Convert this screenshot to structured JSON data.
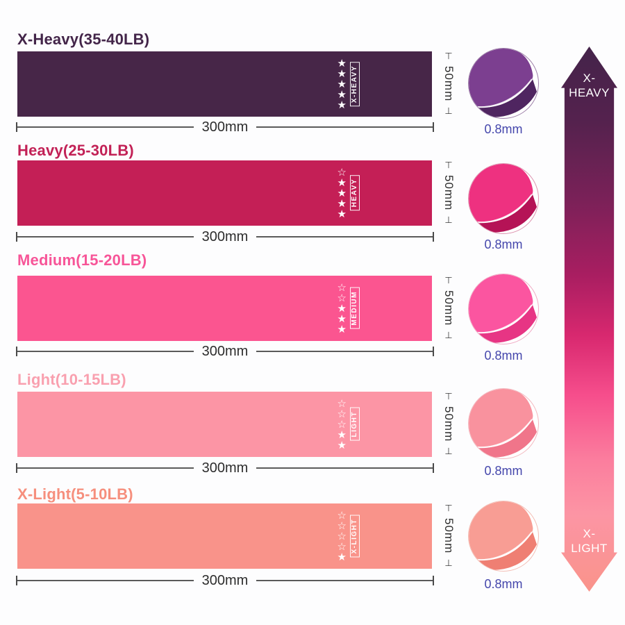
{
  "page": {
    "background": "#fdfdfe"
  },
  "colors": {
    "dimension_text": "#2d2d2d",
    "dimension_line": "#5a5a5a",
    "thickness_text": "#4547ac",
    "star_color": "#ffffff"
  },
  "bands": [
    {
      "title": "X-Heavy(35-40LB)",
      "title_color": "#432549",
      "color": "#472648",
      "label": "X-HEAVY",
      "stars": [
        1,
        1,
        1,
        1,
        1
      ],
      "width_label": "300mm",
      "height_label": "50mm",
      "thickness_label": "0.8mm",
      "circle": {
        "main": "#7c3f90",
        "dark": "#4f2560",
        "border": "#9d7fa8"
      }
    },
    {
      "title": "Heavy(25-30LB)",
      "title_color": "#c22156",
      "color": "#c41f56",
      "label": "HEAVY",
      "stars": [
        0,
        1,
        1,
        1,
        1
      ],
      "width_label": "300mm",
      "height_label": "50mm",
      "thickness_label": "0.8mm",
      "circle": {
        "main": "#ee3180",
        "dark": "#b51356",
        "border": "#dd93af"
      }
    },
    {
      "title": "Medium(15-20LB)",
      "title_color": "#f75598",
      "color": "#fb5590",
      "label": "MEDIUM",
      "stars": [
        0,
        0,
        1,
        1,
        1
      ],
      "width_label": "300mm",
      "height_label": "50mm",
      "thickness_label": "0.8mm",
      "circle": {
        "main": "#fb55a0",
        "dark": "#e73584",
        "border": "#f0a9c4"
      }
    },
    {
      "title": "Light(10-15LB)",
      "title_color": "#f9a0af",
      "color": "#fc95a5",
      "label": "LIGHT",
      "stars": [
        0,
        0,
        0,
        1,
        1
      ],
      "width_label": "300mm",
      "height_label": "50mm",
      "thickness_label": "0.8mm",
      "circle": {
        "main": "#f9929e",
        "dark": "#f0758a",
        "border": "#f3b8bf"
      }
    },
    {
      "title": "X-Light(5-10LB)",
      "title_color": "#f68f7d",
      "color": "#f9938a",
      "label": "X-LIGHT",
      "stars": [
        0,
        0,
        0,
        0,
        1
      ],
      "width_label": "300mm",
      "height_label": "50mm",
      "thickness_label": "0.8mm",
      "circle": {
        "main": "#f89d94",
        "dark": "#ef7f73",
        "border": "#f3bdb4"
      }
    }
  ],
  "dimension_caps": {
    "top": "⊤",
    "bottom": "⊥"
  },
  "arrow": {
    "top_label_line1": "X-",
    "top_label_line2": "HEAVY",
    "bottom_label_line1": "X-",
    "bottom_label_line2": "LIGHT",
    "gradient": [
      "#44234a 0%",
      "#55224e 14%",
      "#7a2158 28%",
      "#a91e61 42%",
      "#d8286f 53%",
      "#f64e8c 64%",
      "#fb7e9e 76%",
      "#fc95a4 86%",
      "#f9938a 100%"
    ]
  }
}
